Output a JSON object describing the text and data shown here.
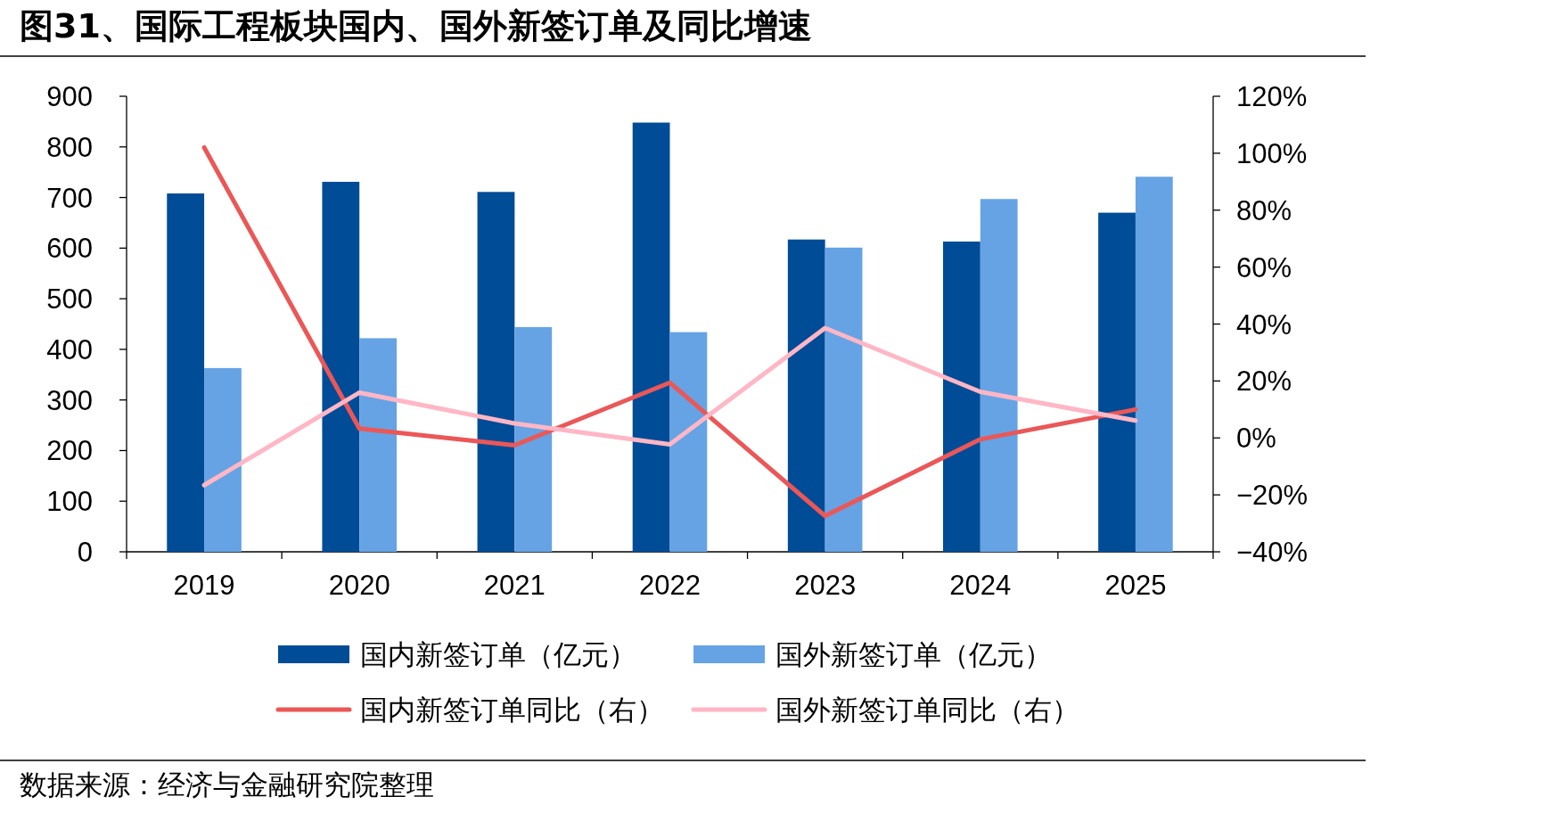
{
  "chart_data": {
    "type": "bar",
    "title": "图31、国际工程板块国内、国外新签订单及同比增速",
    "categories": [
      "2019",
      "2020",
      "2021",
      "2022",
      "2023",
      "2024",
      "2025"
    ],
    "series": [
      {
        "name": "国内新签订单（亿元）",
        "color": "#004c97",
        "values": [
          708,
          731,
          711,
          848,
          617,
          613,
          670
        ]
      },
      {
        "name": "国外新签订单（亿元）",
        "color": "#65a3e4",
        "values": [
          363,
          422,
          444,
          434,
          601,
          697,
          741
        ]
      },
      {
        "name": "国内新签订单同比（右）",
        "type": "line",
        "axis": "y2",
        "color": "#eb5757",
        "values": [
          102,
          3.3,
          -2.6,
          19.4,
          -27.4,
          -0.5,
          10
        ]
      },
      {
        "name": "国外新签订单同比（右）",
        "type": "line",
        "axis": "y2",
        "color": "#ffb6c5",
        "values": [
          -16.6,
          15.9,
          5.1,
          -2.3,
          38.6,
          16.2,
          6.1
        ]
      }
    ],
    "ylim": [
      0,
      900
    ],
    "yticks": [
      0,
      100,
      200,
      300,
      400,
      500,
      600,
      700,
      800,
      900
    ],
    "y2lim": [
      -40,
      120
    ],
    "y2ticks": [
      {
        "value": -40,
        "label": "−40%"
      },
      {
        "value": -20,
        "label": "−20%"
      },
      {
        "value": 0,
        "label": "0%"
      },
      {
        "value": 20,
        "label": "20%"
      },
      {
        "value": 40,
        "label": "40%"
      },
      {
        "value": 60,
        "label": "60%"
      },
      {
        "value": 80,
        "label": "80%"
      },
      {
        "value": 100,
        "label": "100%"
      },
      {
        "value": 120,
        "label": "120%"
      }
    ],
    "grid": false,
    "legend": "bottom",
    "annotations": [
      "数据来源：经济与金融研究院整理"
    ]
  }
}
